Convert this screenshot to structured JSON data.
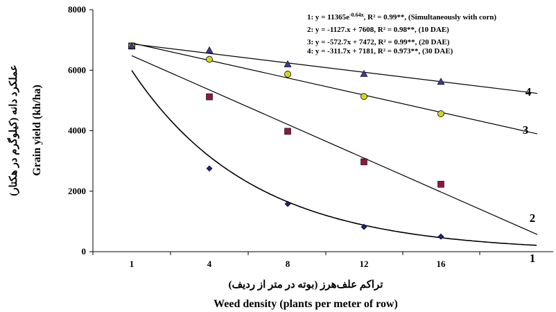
{
  "chart_data": {
    "type": "scatter",
    "x_categories": [
      "1",
      "4",
      "8",
      "12",
      "16"
    ],
    "ylim": [
      0,
      8000
    ],
    "yticks": [
      "0",
      "2000",
      "4000",
      "6000",
      "8000"
    ],
    "xlabel_fa": "تراکم علف‌هرز (بوته در متر از ردیف)",
    "xlabel_en": "Weed density (plants per meter of row)",
    "ylabel_fa": "عملکرد دانه (کیلوگرم در هکتار)",
    "ylabel_en": "Grain yield (kh/ha)",
    "equations": [
      {
        "prefix": "1: y = 11365e",
        "sup": "-0.64x",
        "suffix": ", R² = 0.99**, (Simultaneously with corn)"
      },
      {
        "text": "2: y = -1127.x + 7608, R² = 0.98**, (10 DAE)"
      },
      {
        "text": "3: y = -572.7x + 7472, R² = 0.99**, (20 DAE)"
      },
      {
        "text": "4: y = -311.7x + 7181, R² = 0.973**, (30 DAE)"
      }
    ],
    "series": [
      {
        "name": "1",
        "marker": "diamond",
        "color": "#1f1f8f",
        "values": [
          6800,
          2750,
          1580,
          820,
          500
        ]
      },
      {
        "name": "2",
        "marker": "square",
        "color": "#8b1a3a",
        "values": [
          6800,
          5120,
          3980,
          2970,
          2230
        ]
      },
      {
        "name": "3",
        "marker": "circle",
        "color": "#d4d422",
        "values": [
          6800,
          6360,
          5870,
          5130,
          4560
        ]
      },
      {
        "name": "4",
        "marker": "triangle",
        "color": "#3a3a9a",
        "values": [
          6800,
          6660,
          6200,
          5880,
          5620
        ]
      }
    ],
    "line_labels": [
      "1",
      "2",
      "3",
      "4"
    ]
  }
}
